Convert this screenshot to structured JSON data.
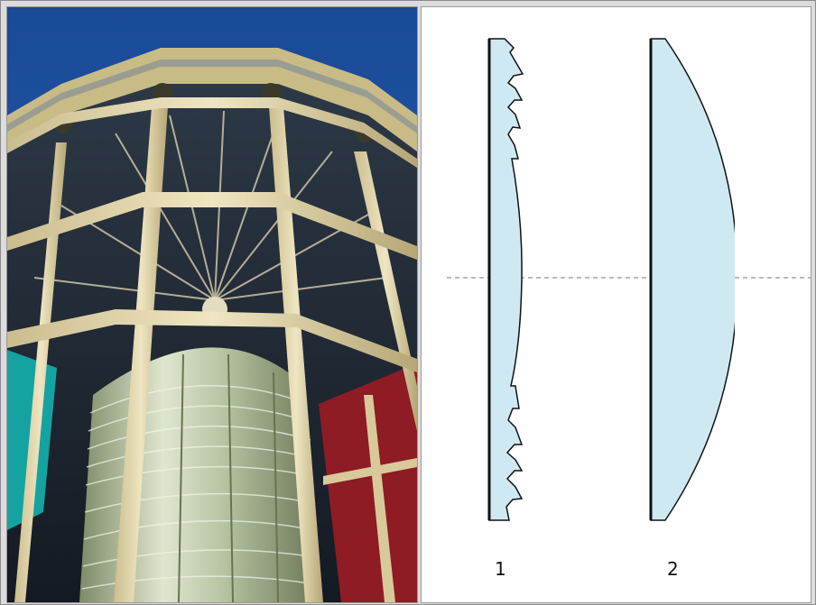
{
  "photo": {
    "subject": "lighthouse-lantern-with-fresnel-lens",
    "colors": {
      "sky": "#1d4f9c",
      "frame": "#d8c99a",
      "glass_dark": "#1e2630",
      "red_panel": "#8f1b24",
      "teal_panel": "#14a3a0",
      "lens_glass": "#b9c7a6"
    }
  },
  "diagram": {
    "lens_fill": "#cfe9f3",
    "outline": "#111111",
    "axis_color": "#777777",
    "lenses": [
      {
        "label": "1"
      },
      {
        "label": "2"
      }
    ]
  }
}
